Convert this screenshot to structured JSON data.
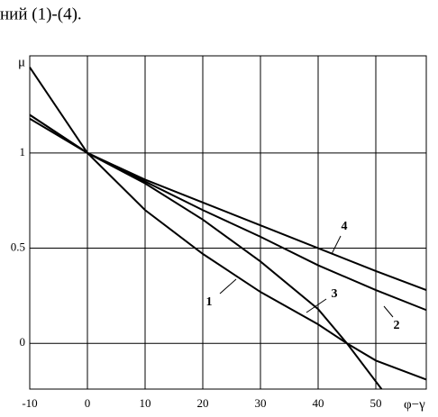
{
  "text": "ний (1)-(4).",
  "chart_data": {
    "type": "line",
    "y_label": "μ",
    "x_label": "φ−γ",
    "xlim": [
      -10,
      58.75
    ],
    "ylim": [
      -0.24,
      1.51
    ],
    "xticks": [
      -10,
      0,
      10,
      20,
      30,
      40,
      50
    ],
    "yticks": [
      0,
      0.5,
      1
    ],
    "grid": true,
    "color": "#000000",
    "series": [
      {
        "name": "1",
        "x": [
          -10,
          0,
          10,
          20,
          30,
          40,
          45,
          50,
          58.75
        ],
        "values": [
          1.45,
          1,
          0.7,
          0.47,
          0.27,
          0.1,
          0,
          -0.09,
          -0.19
        ]
      },
      {
        "name": "2",
        "x": [
          -10,
          0,
          10,
          20,
          30,
          40,
          50,
          58.75
        ],
        "values": [
          1.2,
          1,
          0.85,
          0.7,
          0.56,
          0.41,
          0.28,
          0.175
        ]
      },
      {
        "name": "3",
        "x": [
          -10,
          0,
          10,
          20,
          30,
          40,
          45,
          51
        ],
        "values": [
          1.2,
          1,
          0.84,
          0.65,
          0.43,
          0.18,
          0,
          -0.24
        ]
      },
      {
        "name": "4",
        "x": [
          -10,
          0,
          10,
          20,
          30,
          40,
          50,
          58.75
        ],
        "values": [
          1.18,
          1,
          0.86,
          0.74,
          0.62,
          0.5,
          0.38,
          0.28
        ]
      }
    ]
  }
}
